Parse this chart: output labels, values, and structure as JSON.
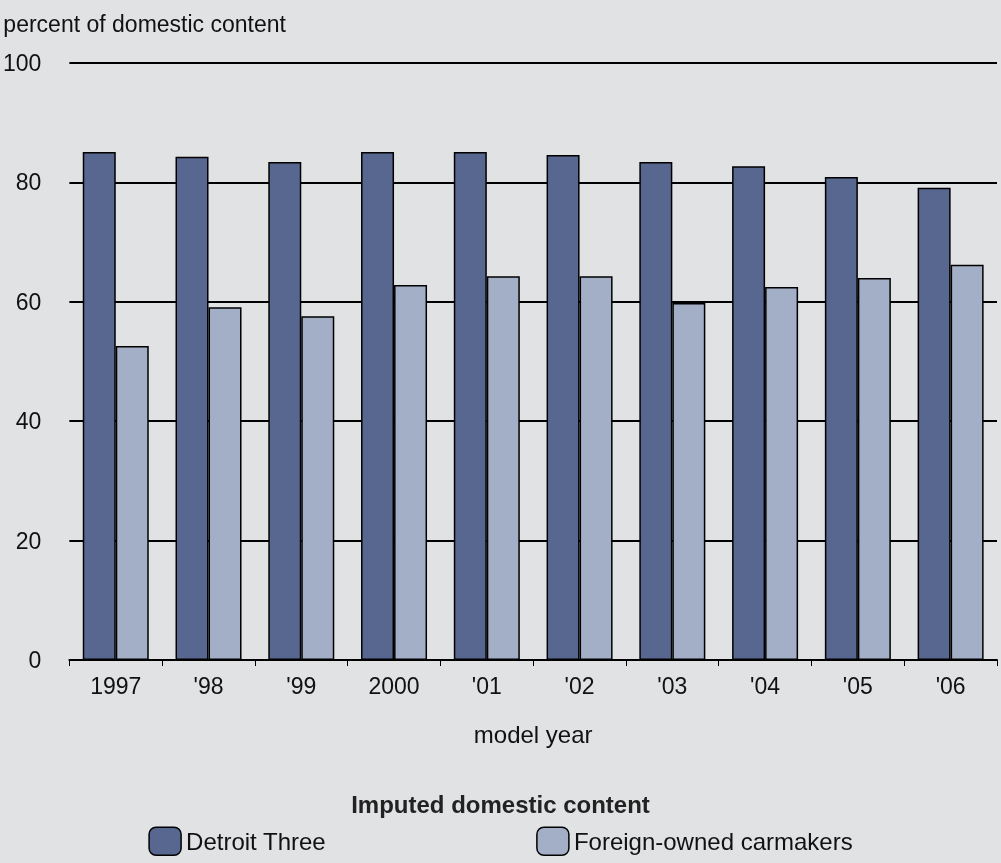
{
  "chart_data": {
    "type": "bar",
    "xlabel": "model year",
    "ylabel": "percent of domestic content",
    "legend_title": "Imputed domestic content",
    "categories": [
      "1997",
      "'98",
      "'99",
      "2000",
      "'01",
      "'02",
      "'03",
      "'04",
      "'05",
      "'06"
    ],
    "series": [
      {
        "name": "Detroit Three",
        "color": "#58678f",
        "values": [
          85.1,
          84.3,
          83.4,
          85.1,
          85.1,
          84.6,
          83.4,
          82.7,
          80.9,
          79.1
        ]
      },
      {
        "name": "Foreign-owned carmakers",
        "color": "#a3aec7",
        "values": [
          52.6,
          59.1,
          57.6,
          62.8,
          64.3,
          64.3,
          59.8,
          62.5,
          64.0,
          66.2
        ]
      }
    ],
    "ylim": [
      0,
      100
    ],
    "yticks": [
      0,
      20,
      40,
      60,
      80,
      100
    ],
    "grid": "y",
    "legend": "bottom"
  }
}
